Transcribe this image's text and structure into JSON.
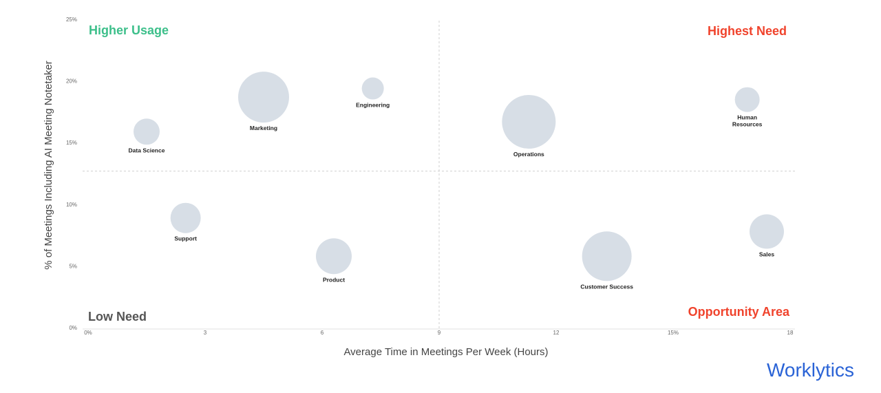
{
  "chart_data": {
    "type": "bubble",
    "xlabel": "Average Time in Meetings Per Week (Hours)",
    "ylabel": "% of Meetings Including AI Meeting Notetaker",
    "xlim": [
      0,
      18
    ],
    "ylim": [
      0,
      25
    ],
    "x_ticks": [
      {
        "value": 0,
        "label": "0%"
      },
      {
        "value": 3,
        "label": "3"
      },
      {
        "value": 6,
        "label": "6"
      },
      {
        "value": 9,
        "label": "9"
      },
      {
        "value": 12,
        "label": "12"
      },
      {
        "value": 15,
        "label": "15%"
      },
      {
        "value": 18,
        "label": "18"
      }
    ],
    "y_ticks": [
      {
        "value": 0,
        "label": "0%"
      },
      {
        "value": 5,
        "label": "5%"
      },
      {
        "value": 10,
        "label": "10%"
      },
      {
        "value": 15,
        "label": "15%"
      },
      {
        "value": 20,
        "label": "20%"
      },
      {
        "value": 25,
        "label": "25%"
      }
    ],
    "divider_x": 9,
    "divider_y": 12.8,
    "quadrant_labels": {
      "top_left": "Higher Usage",
      "top_right": "Highest Need",
      "bottom_left": "Low Need",
      "bottom_right": "Opportunity Area"
    },
    "points": [
      {
        "name": "Data Science",
        "x": 1.5,
        "y": 16.0,
        "size": 19
      },
      {
        "name": "Marketing",
        "x": 4.5,
        "y": 18.8,
        "size": 37
      },
      {
        "name": "Engineering",
        "x": 7.3,
        "y": 19.5,
        "size": 16
      },
      {
        "name": "Operations",
        "x": 11.3,
        "y": 16.8,
        "size": 39
      },
      {
        "name": "Human Resources",
        "x": 16.9,
        "y": 18.6,
        "size": 18
      },
      {
        "name": "Support",
        "x": 2.5,
        "y": 9.0,
        "size": 22
      },
      {
        "name": "Product",
        "x": 6.3,
        "y": 5.9,
        "size": 26
      },
      {
        "name": "Customer Success",
        "x": 13.3,
        "y": 5.9,
        "size": 36
      },
      {
        "name": "Sales",
        "x": 17.4,
        "y": 7.9,
        "size": 25
      }
    ],
    "grid": false,
    "legend": "none"
  },
  "colors": {
    "bubble": "#d7dee6",
    "green": "#3cbf8a",
    "red": "#f0432c",
    "brand": "#2a63d6"
  },
  "logo": {
    "text": "Worklytics"
  }
}
